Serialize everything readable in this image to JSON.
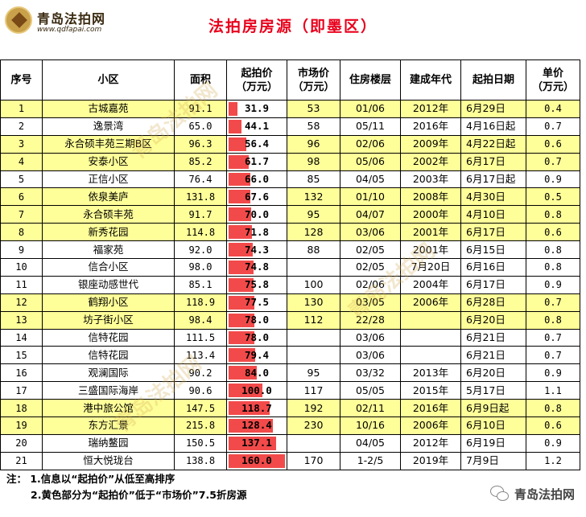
{
  "header": {
    "logo_name": "青岛法拍网",
    "logo_url": "www.qdfapai.com",
    "title": "法拍房房源（即墨区）"
  },
  "columns": [
    "序号",
    "小区",
    "面积",
    "起拍价\n（万元）",
    "市场价\n（万元）",
    "住房楼层",
    "建成年代",
    "起拍日期",
    "单价\n（万元）"
  ],
  "rows": [
    {
      "idx": "1",
      "name": "古城嘉苑",
      "area": "91.1",
      "price": "31.9",
      "market": "53",
      "floor": "01/06",
      "year": "2012年",
      "date": "6月29日",
      "unit": "0.4",
      "hl": true
    },
    {
      "idx": "2",
      "name": "逸景湾",
      "area": "65.0",
      "price": "44.1",
      "market": "58",
      "floor": "05/11",
      "year": "2016年",
      "date": "4月16日起",
      "unit": "0.7",
      "hl": false
    },
    {
      "idx": "3",
      "name": "永合硕丰苑三期B区",
      "area": "96.3",
      "price": "56.4",
      "market": "96",
      "floor": "02/06",
      "year": "2009年",
      "date": "4月22日起",
      "unit": "0.6",
      "hl": true
    },
    {
      "idx": "4",
      "name": "安泰小区",
      "area": "85.2",
      "price": "61.7",
      "market": "98",
      "floor": "05/06",
      "year": "2002年",
      "date": "6月17日",
      "unit": "0.7",
      "hl": true
    },
    {
      "idx": "5",
      "name": "正信小区",
      "area": "76.4",
      "price": "66.0",
      "market": "85",
      "floor": "04/05",
      "year": "2003年",
      "date": "6月17日起",
      "unit": "0.9",
      "hl": false
    },
    {
      "idx": "6",
      "name": "依泉美庐",
      "area": "131.8",
      "price": "67.6",
      "market": "132",
      "floor": "01/10",
      "year": "2008年",
      "date": "4月30日",
      "unit": "0.5",
      "hl": true
    },
    {
      "idx": "7",
      "name": "永合硕丰苑",
      "area": "91.7",
      "price": "70.0",
      "market": "95",
      "floor": "04/07",
      "year": "2000年",
      "date": "4月10日",
      "unit": "0.8",
      "hl": true
    },
    {
      "idx": "8",
      "name": "新秀花园",
      "area": "114.8",
      "price": "71.8",
      "market": "128",
      "floor": "03/06",
      "year": "2001年",
      "date": "6月17日",
      "unit": "0.6",
      "hl": true
    },
    {
      "idx": "9",
      "name": "福家苑",
      "area": "92.0",
      "price": "74.3",
      "market": "88",
      "floor": "02/05",
      "year": "2001年",
      "date": "6月15日",
      "unit": "0.8",
      "hl": false
    },
    {
      "idx": "10",
      "name": "信合小区",
      "area": "98.0",
      "price": "74.8",
      "market": "",
      "floor": "02/05",
      "year": "7月20日",
      "date": "6月16日",
      "unit": "0.8",
      "hl": false
    },
    {
      "idx": "11",
      "name": "银座动感世代",
      "area": "85.1",
      "price": "75.8",
      "market": "100",
      "floor": "02/06",
      "year": "2004年",
      "date": "6月17日",
      "unit": "0.9",
      "hl": false
    },
    {
      "idx": "12",
      "name": "鹤翔小区",
      "area": "118.9",
      "price": "77.5",
      "market": "130",
      "floor": "03/05",
      "year": "2006年",
      "date": "6月28日",
      "unit": "0.7",
      "hl": true
    },
    {
      "idx": "13",
      "name": "坊子街小区",
      "area": "98.4",
      "price": "78.0",
      "market": "112",
      "floor": "22/28",
      "year": "",
      "date": "6月20日",
      "unit": "0.8",
      "hl": true
    },
    {
      "idx": "14",
      "name": "信特花园",
      "area": "111.5",
      "price": "78.0",
      "market": "",
      "floor": "03/06",
      "year": "",
      "date": "6月21日",
      "unit": "0.7",
      "hl": false
    },
    {
      "idx": "15",
      "name": "信特花园",
      "area": "113.4",
      "price": "79.4",
      "market": "",
      "floor": "03/06",
      "year": "",
      "date": "6月21日",
      "unit": "0.7",
      "hl": false
    },
    {
      "idx": "16",
      "name": "观澜国际",
      "area": "90.2",
      "price": "84.0",
      "market": "95",
      "floor": "03/32",
      "year": "2013年",
      "date": "6月20日",
      "unit": "0.9",
      "hl": false
    },
    {
      "idx": "17",
      "name": "三盛国际海岸",
      "area": "90.6",
      "price": "100.0",
      "market": "117",
      "floor": "05/05",
      "year": "2015年",
      "date": "5月17日",
      "unit": "1.1",
      "hl": false
    },
    {
      "idx": "18",
      "name": "港中旅公馆",
      "area": "147.5",
      "price": "118.7",
      "market": "192",
      "floor": "02/11",
      "year": "2016年",
      "date": "6月9日起",
      "unit": "0.8",
      "hl": true
    },
    {
      "idx": "19",
      "name": "东方汇景",
      "area": "215.8",
      "price": "128.4",
      "market": "230",
      "floor": "10/16",
      "year": "2006年",
      "date": "6月10日",
      "unit": "0.6",
      "hl": true
    },
    {
      "idx": "20",
      "name": "瑞纳鳌园",
      "area": "150.5",
      "price": "137.1",
      "market": "",
      "floor": "04/05",
      "year": "2012年",
      "date": "6月19日",
      "unit": "0.9",
      "hl": false
    },
    {
      "idx": "21",
      "name": "恒大悦珑台",
      "area": "138.8",
      "price": "160.0",
      "market": "170",
      "floor": "1-2/5",
      "year": "2019年",
      "date": "7月9日",
      "unit": "1.2",
      "hl": false
    }
  ],
  "price_bar_max": 160.0,
  "highlight_color": "#ffff99",
  "bar_color": "#f24a4a",
  "title_color": "#e8001c",
  "notes": {
    "line1": "注：   1.信息以“起拍价”从低至高排序",
    "line2": "2.黄色部分为“起拍价”低于“市场价”7.5折房源"
  },
  "footer": {
    "brand": "青岛法拍网",
    "icon": "wechat-icon"
  },
  "watermark": "青岛法拍网"
}
